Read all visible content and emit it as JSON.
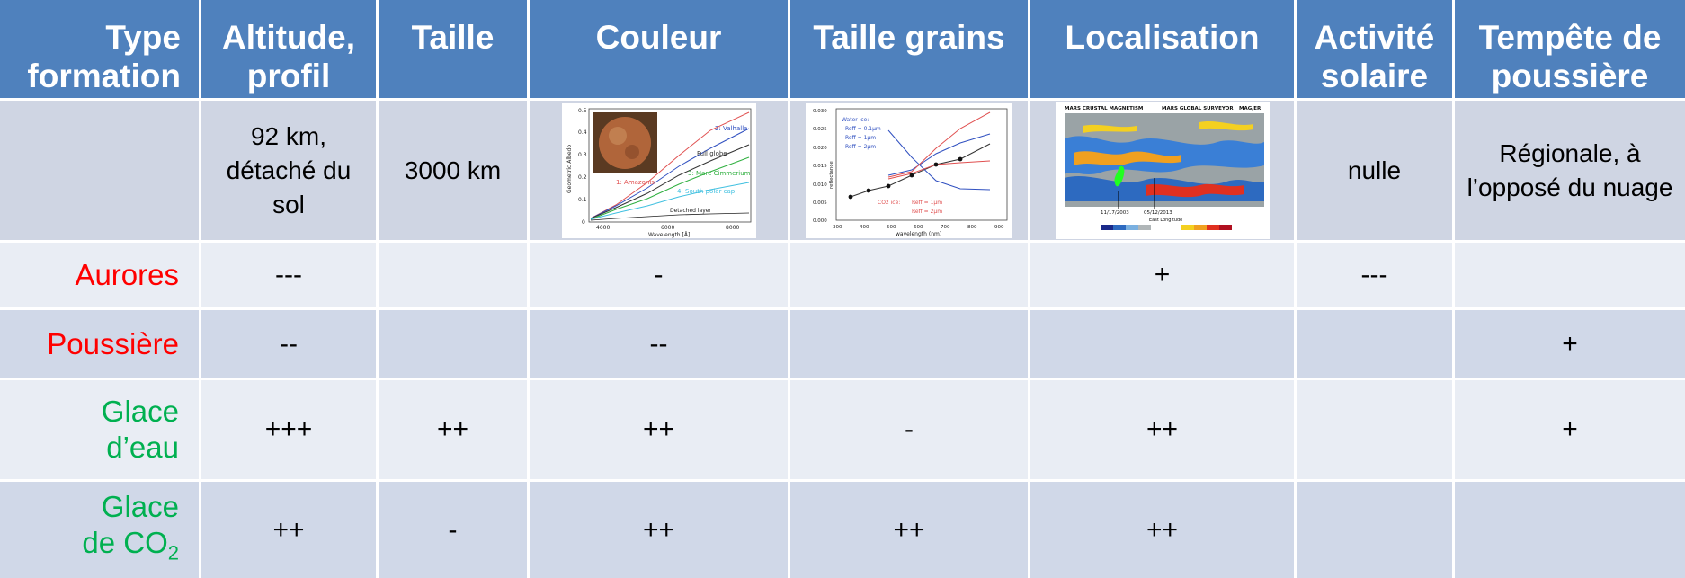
{
  "header": {
    "col0": "Type formation",
    "col1": "Altitude, profil",
    "col2": "Taille",
    "col3": "Couleur",
    "col4": "Taille grains",
    "col5": "Localisation",
    "col6": "Activité solaire",
    "col7": "Tempête de poussière"
  },
  "colors": {
    "header_bg": "#4f81bd",
    "row_light": "#e9edf4",
    "row_dark": "#d0d8e8",
    "label_red": "#ff0000",
    "label_green": "#00b050"
  },
  "row_detached": {
    "altitude": "92 km, détaché du sol",
    "taille": "3000 km",
    "activite": "nulle",
    "tempete": "Régionale, à l’opposé du nuage"
  },
  "figure_color": {
    "ylabel": "Geometric Albedo",
    "xlabel": "Wavelength [Å]",
    "xticks": [
      "4000",
      "6000",
      "8000"
    ],
    "yticks": [
      "0",
      "0.1",
      "0.2",
      "0.3",
      "0.4",
      "0.5"
    ],
    "legend": [
      "2: Valhalla",
      "Full globe",
      "3: Mare Cimmerium",
      "4: South polar cap",
      "1: Amazonis",
      "Detached layer"
    ]
  },
  "figure_grain": {
    "ylabel": "reflectance",
    "xlabel": "wavelength (nm)",
    "xticks": [
      "300",
      "400",
      "500",
      "600",
      "700",
      "800",
      "900"
    ],
    "yticks": [
      "0.000",
      "0.005",
      "0.010",
      "0.015",
      "0.020",
      "0.025",
      "0.030"
    ],
    "legend_water": [
      "Water ice:",
      "Reff = 0.1µm",
      "Reff = 1µm",
      "Reff = 2µm"
    ],
    "legend_co2": [
      "CO2 ice:",
      "Reff = 1µm",
      "Reff = 2µm"
    ]
  },
  "figure_map": {
    "title": "MARS CRUSTAL MAGNETISM",
    "subtitle": "MARS GLOBAL SURVEYOR",
    "tag": "MAG/ER",
    "dates": [
      "11/17/2003",
      "05/12/2013"
    ],
    "xlabel": "East Longitude"
  },
  "rows": [
    {
      "label": "Aurores",
      "color": "red",
      "cells": [
        "---",
        "",
        "-",
        "",
        "+",
        "---",
        ""
      ]
    },
    {
      "label": "Poussière",
      "color": "red",
      "cells": [
        "--",
        "",
        "--",
        "",
        "",
        "",
        "+"
      ]
    },
    {
      "label": "Glace d’eau",
      "color": "green",
      "cells": [
        "+++",
        "++",
        "++",
        "-",
        "++",
        "",
        "+"
      ]
    },
    {
      "label_main": "Glace de CO",
      "label_sub": "2",
      "color": "green",
      "cells": [
        "++",
        "-",
        "++",
        "++",
        "++",
        "",
        ""
      ]
    }
  ]
}
